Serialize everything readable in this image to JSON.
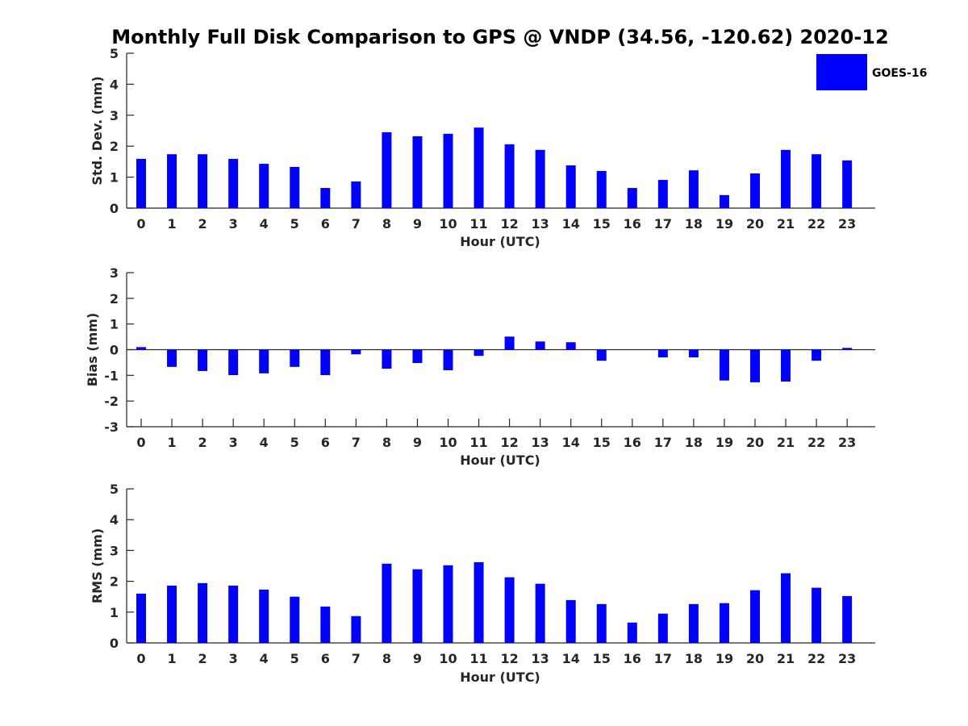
{
  "chart_data": {
    "type": "bar",
    "title": "Monthly Full Disk Comparison to GPS @ VNDP (34.56, -120.62) 2020-12",
    "legend": {
      "entries": [
        {
          "label": "GOES-16",
          "color": "#0000ff"
        }
      ],
      "placement": "top-right"
    },
    "categories": [
      "0",
      "1",
      "2",
      "3",
      "4",
      "5",
      "6",
      "7",
      "8",
      "9",
      "10",
      "11",
      "12",
      "13",
      "14",
      "15",
      "16",
      "17",
      "18",
      "19",
      "20",
      "21",
      "22",
      "23"
    ],
    "panels": [
      {
        "id": "stddev",
        "ylabel": "Std. Dev. (mm)",
        "xlabel": "Hour (UTC)",
        "ylim": [
          0,
          5
        ],
        "yticks": [
          "0",
          "1",
          "2",
          "3",
          "4",
          "5"
        ],
        "series": [
          {
            "name": "GOES-16",
            "color": "#0000ff",
            "values": [
              1.59,
              1.74,
              1.74,
              1.59,
              1.43,
              1.33,
              0.65,
              0.86,
              2.45,
              2.32,
              2.4,
              2.6,
              2.06,
              1.88,
              1.38,
              1.2,
              0.65,
              0.91,
              1.22,
              0.42,
              1.12,
              1.88,
              1.74,
              1.54
            ]
          }
        ]
      },
      {
        "id": "bias",
        "ylabel": "Bias (mm)",
        "xlabel": "Hour (UTC)",
        "ylim": [
          -3,
          3
        ],
        "yticks": [
          "-3",
          "-2",
          "-1",
          "0",
          "1",
          "2",
          "3"
        ],
        "series": [
          {
            "name": "GOES-16",
            "color": "#0000ff",
            "values": [
              0.1,
              -0.67,
              -0.83,
              -0.99,
              -0.92,
              -0.67,
              -0.99,
              -0.18,
              -0.74,
              -0.52,
              -0.8,
              -0.24,
              0.51,
              0.32,
              0.29,
              -0.43,
              0.0,
              -0.3,
              -0.3,
              -1.2,
              -1.27,
              -1.24,
              -0.43,
              0.07
            ]
          }
        ]
      },
      {
        "id": "rms",
        "ylabel": "RMS (mm)",
        "xlabel": "Hour (UTC)",
        "ylim": [
          0,
          5
        ],
        "yticks": [
          "0",
          "1",
          "2",
          "3",
          "4",
          "5"
        ],
        "series": [
          {
            "name": "GOES-16",
            "color": "#0000ff",
            "values": [
              1.6,
              1.86,
              1.94,
              1.86,
              1.73,
              1.5,
              1.18,
              0.87,
              2.57,
              2.39,
              2.52,
              2.62,
              2.13,
              1.92,
              1.39,
              1.26,
              0.66,
              0.95,
              1.26,
              1.29,
              1.71,
              2.26,
              1.79,
              1.52
            ]
          }
        ]
      }
    ]
  }
}
